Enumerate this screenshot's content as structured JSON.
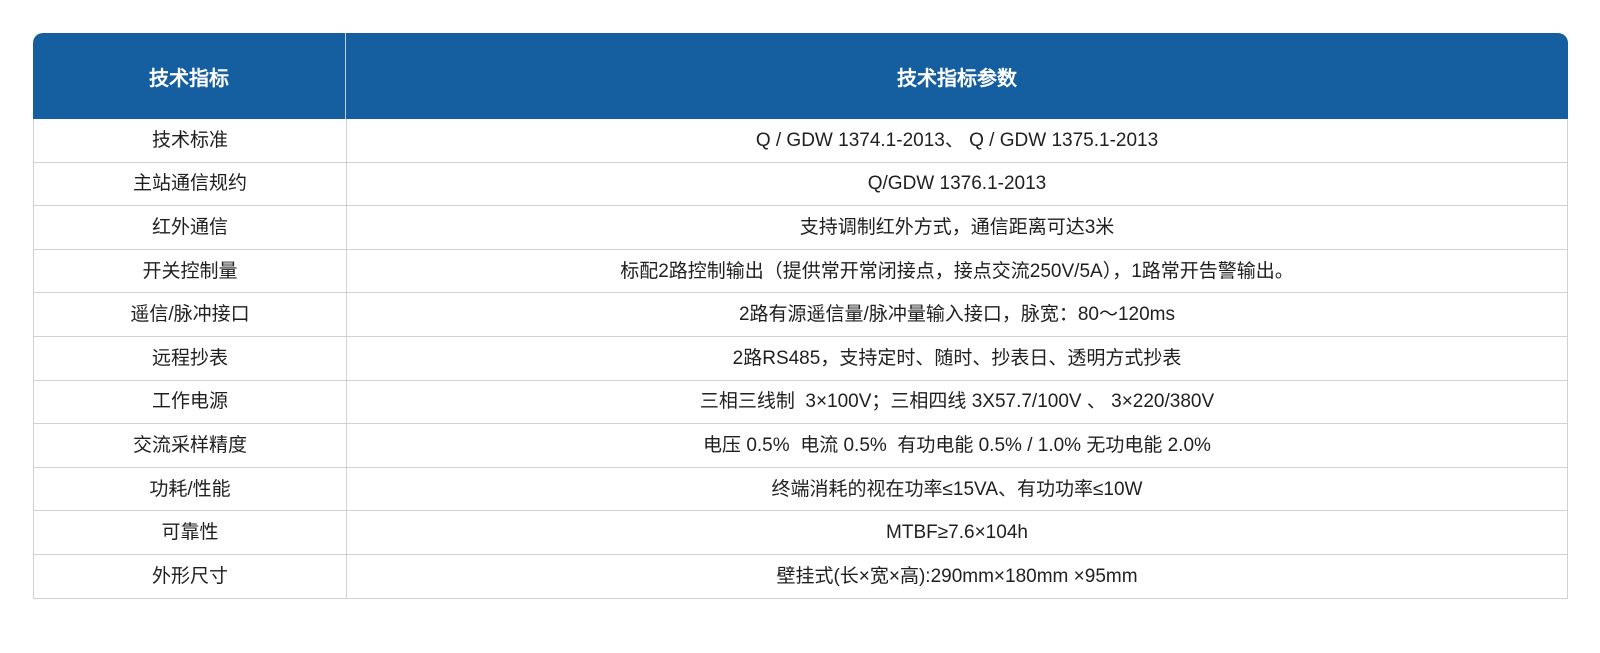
{
  "colors": {
    "header_bg": "#155fa0",
    "header_text": "#ffffff",
    "border": "#d2d2d2",
    "body_text": "#1f1f1f"
  },
  "table": {
    "header": {
      "col1": "技术指标",
      "col2": "技术指标参数"
    },
    "rows": [
      {
        "label": "技术标准",
        "value": "Q / GDW 1374.1-2013、 Q / GDW 1375.1-2013"
      },
      {
        "label": "主站通信规约",
        "value": "Q/GDW 1376.1-2013"
      },
      {
        "label": "红外通信",
        "value": "支持调制红外方式，通信距离可达3米"
      },
      {
        "label": "开关控制量",
        "value": "标配2路控制输出（提供常开常闭接点，接点交流250V/5A），1路常开告警输出。"
      },
      {
        "label": "遥信/脉冲接口",
        "value": "2路有源遥信量/脉冲量输入接口，脉宽：80～120ms"
      },
      {
        "label": "远程抄表",
        "value": "2路RS485，支持定时、随时、抄表日、透明方式抄表"
      },
      {
        "label": "工作电源",
        "value": "三相三线制  3×100V；三相四线 3X57.7/100V 、 3×220/380V"
      },
      {
        "label": "交流采样精度",
        "value": "电压 0.5%  电流 0.5%  有功电能 0.5% / 1.0% 无功电能 2.0%"
      },
      {
        "label": "功耗/性能",
        "value": "终端消耗的视在功率≤15VA、有功功率≤10W"
      },
      {
        "label": "可靠性",
        "value": "MTBF≥7.6×104h"
      },
      {
        "label": "外形尺寸",
        "value": "壁挂式(长×宽×高):290mm×180mm ×95mm"
      }
    ]
  }
}
